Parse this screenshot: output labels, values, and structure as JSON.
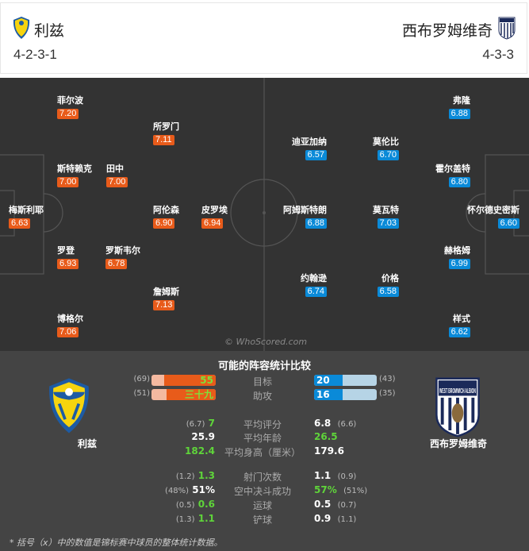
{
  "home": {
    "name": "利兹",
    "formation": "4-2-3-1",
    "color": "#e85b1a"
  },
  "away": {
    "name": "西布罗姆维奇",
    "formation": "4-3-3",
    "color": "#0a8ad8",
    "crest_text": "WEST BROMWICH ALBION"
  },
  "home_players": [
    {
      "name": "菲尔波",
      "rating": "7.20"
    },
    {
      "name": "所罗门",
      "rating": "7.11"
    },
    {
      "name": "斯特赖克",
      "rating": "7.00"
    },
    {
      "name": "田中",
      "rating": "7.00"
    },
    {
      "name": "梅斯利耶",
      "rating": "6.63"
    },
    {
      "name": "阿伦森",
      "rating": "6.90"
    },
    {
      "name": "皮罗埃",
      "rating": "6.94"
    },
    {
      "name": "罗登",
      "rating": "6.93"
    },
    {
      "name": "罗斯韦尔",
      "rating": "6.78"
    },
    {
      "name": "詹姆斯",
      "rating": "7.13"
    },
    {
      "name": "博格尔",
      "rating": "7.06"
    }
  ],
  "away_players": [
    {
      "name": "弗隆",
      "rating": "6.88"
    },
    {
      "name": "迪亚加纳",
      "rating": "6.57"
    },
    {
      "name": "莫伦比",
      "rating": "6.70"
    },
    {
      "name": "霍尔盖特",
      "rating": "6.80"
    },
    {
      "name": "阿姆斯特朗",
      "rating": "6.88"
    },
    {
      "name": "莫瓦特",
      "rating": "7.03"
    },
    {
      "name": "怀尔德史密斯",
      "rating": "6.60"
    },
    {
      "name": "赫格姆",
      "rating": "6.99"
    },
    {
      "name": "约翰逊",
      "rating": "6.74"
    },
    {
      "name": "价格",
      "rating": "6.58"
    },
    {
      "name": "样式",
      "rating": "6.62"
    }
  ],
  "watermark": "© WhoScored.com",
  "stats": {
    "title": "可能的阵容统计比较",
    "bars": [
      {
        "label": "目标",
        "home": "55",
        "home_total": "(69)",
        "home_fraction": 0.8,
        "away": "20",
        "away_total": "(43)",
        "away_fraction": 0.46
      },
      {
        "label": "助攻",
        "home": "三十九",
        "home_total": "(51)",
        "home_fraction": 0.76,
        "away": "16",
        "away_total": "(35)",
        "away_fraction": 0.46
      }
    ],
    "rows": [
      {
        "label": "平均评分",
        "home": "7",
        "home_prev": "(6.7)",
        "away": "6.8",
        "away_prev": "(6.6)",
        "better": "home"
      },
      {
        "label": "平均年龄",
        "home": "25.9",
        "home_prev": "",
        "away": "26.5",
        "away_prev": "",
        "better": "away"
      },
      {
        "label": "平均身高（厘米）",
        "home": "182.4",
        "home_prev": "",
        "away": "179.6",
        "away_prev": "",
        "better": "home"
      },
      {
        "label": "射门次数",
        "home": "1.3",
        "home_prev": "(1.2)",
        "away": "1.1",
        "away_prev": "(0.9)",
        "better": "home"
      },
      {
        "label": "空中决斗成功",
        "home": "51%",
        "home_prev": "(48%)",
        "away": "57%",
        "away_prev": "(51%)",
        "better": "away"
      },
      {
        "label": "运球",
        "home": "0.6",
        "home_prev": "(0.5)",
        "away": "0.5",
        "away_prev": "(0.7)",
        "better": "home"
      },
      {
        "label": "铲球",
        "home": "1.1",
        "home_prev": "(1.3)",
        "away": "0.9",
        "away_prev": "(1.1)",
        "better": "home"
      }
    ],
    "footnote": "* 括号（x）中的数值是锦标赛中球员的整体统计数据。"
  }
}
